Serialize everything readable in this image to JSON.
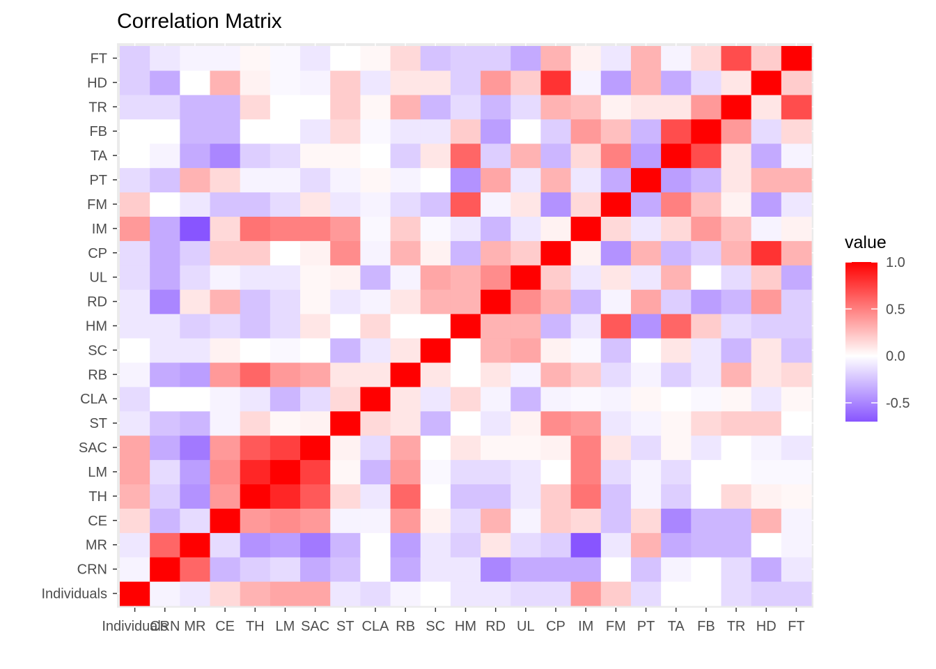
{
  "chart_data": {
    "type": "heatmap",
    "title": "Correlation Matrix",
    "xlabel": "",
    "ylabel": "",
    "variables": [
      "Individuals",
      "CRN",
      "MR",
      "CE",
      "TH",
      "LM",
      "SAC",
      "ST",
      "CLA",
      "RB",
      "SC",
      "HM",
      "RD",
      "UL",
      "CP",
      "IM",
      "FM",
      "PT",
      "TA",
      "FB",
      "TR",
      "HD",
      "FT"
    ],
    "x_tick_labels": [
      "Individuals",
      "CRN",
      "MR",
      "CE",
      "TH",
      "LM",
      "SAC",
      "ST",
      "CLA",
      "RB",
      "SC",
      "HM",
      "RD",
      "UL",
      "CP",
      "IM",
      "FM",
      "PT",
      "TA",
      "FB",
      "TR",
      "HD",
      "FT"
    ],
    "y_tick_labels_bottom_to_top": [
      "Individuals",
      "CRN",
      "MR",
      "CE",
      "TH",
      "LM",
      "SAC",
      "ST",
      "CLA",
      "RB",
      "SC",
      "HM",
      "RD",
      "UL",
      "CP",
      "IM",
      "FM",
      "PT",
      "TA",
      "FB",
      "TR",
      "HD",
      "FT"
    ],
    "matrix": [
      [
        1.0,
        -0.05,
        -0.1,
        0.15,
        0.3,
        0.35,
        0.35,
        -0.1,
        -0.15,
        -0.05,
        0.0,
        -0.1,
        -0.1,
        -0.15,
        -0.15,
        0.4,
        0.2,
        -0.15,
        0.0,
        0.0,
        -0.15,
        -0.2,
        -0.2
      ],
      [
        -0.05,
        1.0,
        0.6,
        -0.3,
        -0.2,
        -0.15,
        -0.35,
        -0.25,
        0.0,
        -0.35,
        -0.1,
        -0.1,
        -0.5,
        -0.35,
        -0.35,
        -0.35,
        0.0,
        -0.25,
        -0.05,
        0.0,
        -0.15,
        -0.35,
        -0.1
      ],
      [
        -0.1,
        0.6,
        1.0,
        -0.15,
        -0.45,
        -0.4,
        -0.55,
        -0.3,
        0.0,
        -0.4,
        -0.1,
        -0.2,
        0.1,
        -0.15,
        -0.2,
        -0.7,
        -0.1,
        0.3,
        -0.35,
        -0.3,
        -0.3,
        0.0,
        -0.05
      ],
      [
        0.15,
        -0.3,
        -0.15,
        1.0,
        0.4,
        0.45,
        0.4,
        -0.05,
        -0.05,
        0.4,
        0.05,
        -0.15,
        0.3,
        -0.05,
        0.2,
        0.15,
        -0.25,
        0.15,
        -0.5,
        -0.3,
        -0.3,
        0.3,
        -0.05
      ],
      [
        0.3,
        -0.2,
        -0.45,
        0.4,
        1.0,
        0.85,
        0.65,
        0.15,
        -0.1,
        0.6,
        0.0,
        -0.25,
        -0.25,
        -0.1,
        0.2,
        0.55,
        -0.25,
        -0.05,
        -0.2,
        0.0,
        0.15,
        0.05,
        0.03
      ],
      [
        0.35,
        -0.15,
        -0.4,
        0.45,
        0.85,
        1.0,
        0.75,
        0.03,
        -0.3,
        0.4,
        -0.03,
        -0.15,
        -0.15,
        -0.1,
        0.0,
        0.5,
        -0.15,
        -0.05,
        -0.15,
        0.0,
        0.0,
        -0.03,
        -0.03
      ],
      [
        0.35,
        -0.35,
        -0.55,
        0.4,
        0.65,
        0.75,
        1.0,
        0.05,
        -0.15,
        0.35,
        0.0,
        0.1,
        0.03,
        0.03,
        0.05,
        0.5,
        0.1,
        -0.15,
        0.03,
        -0.1,
        0.0,
        -0.05,
        -0.1
      ],
      [
        -0.1,
        -0.25,
        -0.3,
        -0.05,
        0.15,
        0.03,
        0.05,
        1.0,
        0.15,
        0.1,
        -0.3,
        0.0,
        -0.1,
        0.05,
        0.45,
        0.4,
        -0.1,
        -0.05,
        0.03,
        0.15,
        0.2,
        0.2,
        0.0
      ],
      [
        -0.15,
        0.0,
        0.0,
        -0.05,
        -0.1,
        -0.3,
        -0.15,
        0.15,
        1.0,
        0.1,
        -0.1,
        0.15,
        -0.05,
        -0.3,
        -0.05,
        -0.03,
        -0.05,
        0.03,
        0.0,
        -0.03,
        0.03,
        -0.1,
        0.03
      ],
      [
        -0.05,
        -0.35,
        -0.4,
        0.4,
        0.6,
        0.4,
        0.35,
        0.1,
        0.1,
        1.0,
        0.1,
        0.0,
        0.1,
        -0.05,
        0.3,
        0.2,
        -0.15,
        -0.05,
        -0.2,
        -0.1,
        0.3,
        0.1,
        0.15
      ],
      [
        0.0,
        -0.1,
        -0.1,
        0.05,
        0.0,
        -0.03,
        0.0,
        -0.3,
        -0.1,
        0.1,
        1.0,
        0.0,
        0.3,
        0.35,
        0.05,
        -0.03,
        -0.25,
        0.0,
        0.1,
        -0.1,
        -0.3,
        0.1,
        -0.25
      ],
      [
        -0.1,
        -0.1,
        -0.2,
        -0.15,
        -0.25,
        -0.15,
        0.1,
        0.0,
        0.15,
        0.0,
        0.0,
        1.0,
        0.3,
        0.3,
        -0.3,
        -0.1,
        0.65,
        -0.45,
        0.6,
        0.2,
        -0.15,
        -0.2,
        -0.2
      ],
      [
        -0.1,
        -0.5,
        0.1,
        0.3,
        -0.25,
        -0.15,
        0.03,
        -0.1,
        -0.05,
        0.1,
        0.3,
        0.3,
        1.0,
        0.45,
        0.3,
        -0.3,
        -0.05,
        0.35,
        -0.2,
        -0.4,
        -0.3,
        0.4,
        -0.2
      ],
      [
        -0.15,
        -0.35,
        -0.15,
        -0.05,
        -0.1,
        -0.1,
        0.03,
        0.05,
        -0.3,
        -0.05,
        0.35,
        0.3,
        0.45,
        1.0,
        0.2,
        -0.1,
        0.1,
        -0.1,
        0.3,
        0.0,
        -0.15,
        0.2,
        -0.35
      ],
      [
        -0.15,
        -0.35,
        -0.2,
        0.2,
        0.2,
        0.0,
        0.05,
        0.45,
        -0.05,
        0.3,
        0.05,
        -0.3,
        0.3,
        0.2,
        1.0,
        0.05,
        -0.45,
        0.3,
        -0.3,
        -0.2,
        0.3,
        0.8,
        0.3
      ],
      [
        0.4,
        -0.35,
        -0.7,
        0.15,
        0.55,
        0.5,
        0.5,
        0.4,
        -0.03,
        0.2,
        -0.03,
        -0.1,
        -0.3,
        -0.1,
        0.05,
        1.0,
        0.15,
        -0.1,
        0.15,
        0.4,
        0.25,
        -0.05,
        0.05
      ],
      [
        0.2,
        0.0,
        -0.1,
        -0.25,
        -0.25,
        -0.15,
        0.1,
        -0.1,
        -0.05,
        -0.15,
        -0.25,
        0.65,
        -0.05,
        0.1,
        -0.45,
        0.15,
        1.0,
        -0.35,
        0.5,
        0.25,
        0.05,
        -0.4,
        -0.1
      ],
      [
        -0.15,
        -0.25,
        0.3,
        0.15,
        -0.05,
        -0.05,
        -0.15,
        -0.05,
        0.03,
        -0.05,
        0.0,
        -0.45,
        0.35,
        -0.1,
        0.3,
        -0.1,
        -0.35,
        1.0,
        -0.4,
        -0.3,
        0.1,
        0.3,
        0.3
      ],
      [
        0.0,
        -0.05,
        -0.35,
        -0.5,
        -0.2,
        -0.15,
        0.03,
        0.03,
        0.0,
        -0.2,
        0.1,
        0.6,
        -0.2,
        0.3,
        -0.3,
        0.15,
        0.5,
        -0.4,
        1.0,
        0.7,
        0.1,
        -0.35,
        -0.05
      ],
      [
        0.0,
        0.0,
        -0.3,
        -0.3,
        0.0,
        0.0,
        -0.1,
        0.15,
        -0.03,
        -0.1,
        -0.1,
        0.2,
        -0.4,
        0.0,
        -0.2,
        0.4,
        0.25,
        -0.3,
        0.7,
        1.0,
        0.4,
        -0.15,
        0.15
      ],
      [
        -0.15,
        -0.15,
        -0.3,
        -0.3,
        0.15,
        0.0,
        0.0,
        0.2,
        0.03,
        0.3,
        -0.3,
        -0.15,
        -0.3,
        -0.15,
        0.3,
        0.25,
        0.05,
        0.1,
        0.1,
        0.4,
        1.0,
        0.1,
        0.7
      ],
      [
        -0.2,
        -0.35,
        0.0,
        0.3,
        0.05,
        -0.03,
        -0.05,
        0.2,
        -0.1,
        0.1,
        0.1,
        -0.2,
        0.4,
        0.2,
        0.8,
        -0.05,
        -0.4,
        0.3,
        -0.35,
        -0.15,
        0.1,
        1.0,
        0.2
      ],
      [
        -0.2,
        -0.1,
        -0.05,
        -0.05,
        0.03,
        -0.03,
        -0.1,
        0.0,
        0.03,
        0.15,
        -0.25,
        -0.2,
        -0.2,
        -0.35,
        0.3,
        0.05,
        -0.1,
        0.3,
        -0.05,
        0.15,
        0.7,
        0.2,
        1.0
      ]
    ],
    "color_scale": {
      "low": "#8855ff",
      "mid": "#ffffff",
      "high": "#ff0000",
      "midpoint": 0,
      "domain": [
        -0.7,
        1.0
      ]
    },
    "legend": {
      "title": "value",
      "position": "right",
      "breaks": [
        1.0,
        0.5,
        0.0,
        -0.5
      ],
      "break_labels": [
        "1.0",
        "0.5",
        "0.0",
        "-0.5"
      ]
    },
    "panel_background": "#ebebeb",
    "grid": true
  }
}
